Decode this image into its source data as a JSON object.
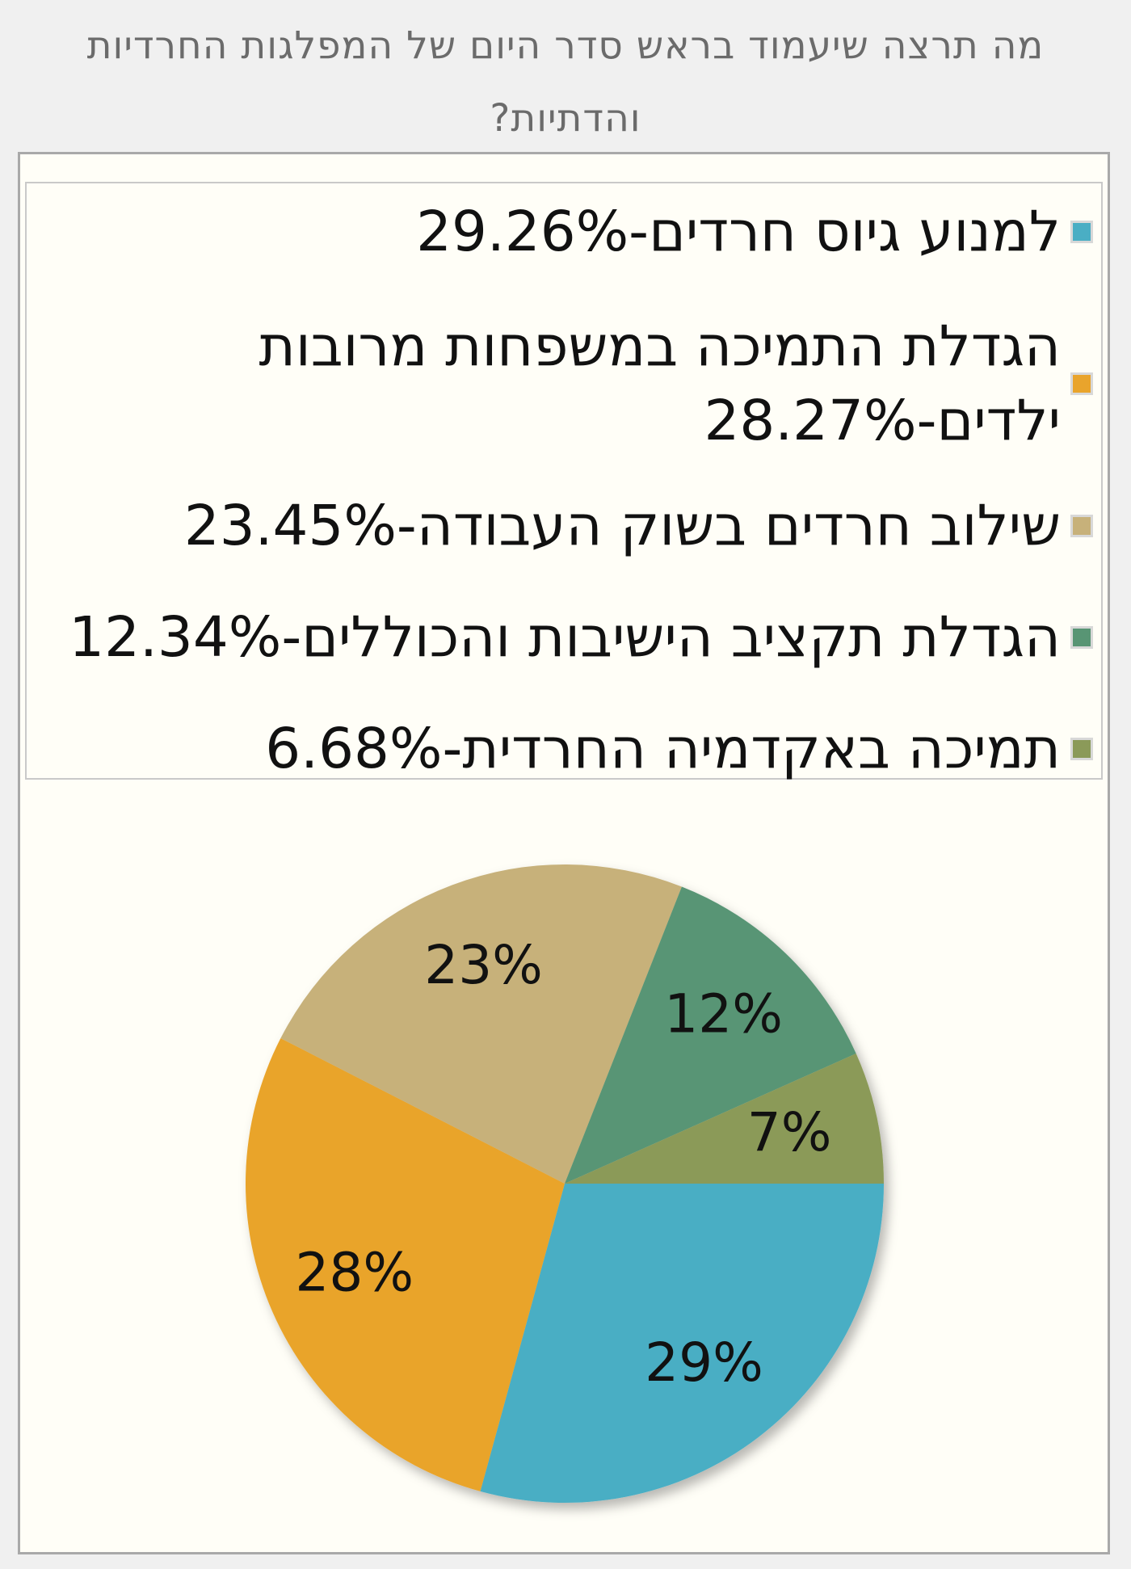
{
  "question": "מה תרצה שיעמוד בראש סדר היום של המפלגות החרדיות והדתיות?",
  "chart_data": {
    "type": "pie",
    "legend_position": "top",
    "slices": [
      {
        "label": "למנוע גיוס חרדים-29.26%",
        "value": 29.26,
        "data_label": "29%",
        "color": "#4aaec4"
      },
      {
        "label": "הגדלת התמיכה במשפחות מרובות ילדים-28.27%",
        "value": 28.27,
        "data_label": "28%",
        "color": "#e9a42c"
      },
      {
        "label": "שילוב חרדים בשוק העבודה-23.45%",
        "value": 23.45,
        "data_label": "23%",
        "color": "#c7b17a"
      },
      {
        "label": "הגדלת תקציב הישיבות והכוללים-12.34%",
        "value": 12.34,
        "data_label": "12%",
        "color": "#589574"
      },
      {
        "label": "תמיכה באקדמיה החרדית-6.68%",
        "value": 6.68,
        "data_label": "7%",
        "color": "#8b9a59"
      }
    ]
  }
}
